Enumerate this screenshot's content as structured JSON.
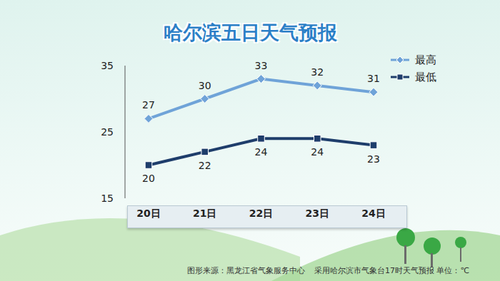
{
  "chart_data": {
    "type": "line",
    "title": "哈尔滨五日天气预报",
    "categories": [
      "20日",
      "21日",
      "22日",
      "23日",
      "24日"
    ],
    "series": [
      {
        "name": "最高",
        "color": "#6fa3d8",
        "marker": "diamond",
        "values": [
          27,
          30,
          33,
          32,
          31
        ]
      },
      {
        "name": "最低",
        "color": "#1e3d6b",
        "marker": "square",
        "values": [
          20,
          22,
          24,
          24,
          23
        ]
      }
    ],
    "ylim": [
      15,
      35
    ],
    "yticks": [
      15,
      25,
      35
    ],
    "grid": false,
    "legend": "upper right",
    "data_labels": true,
    "source": "图形来源：黑龙江省气象服务中心",
    "note": "采用哈尔滨市气象台17时天气预报 单位：℃"
  }
}
